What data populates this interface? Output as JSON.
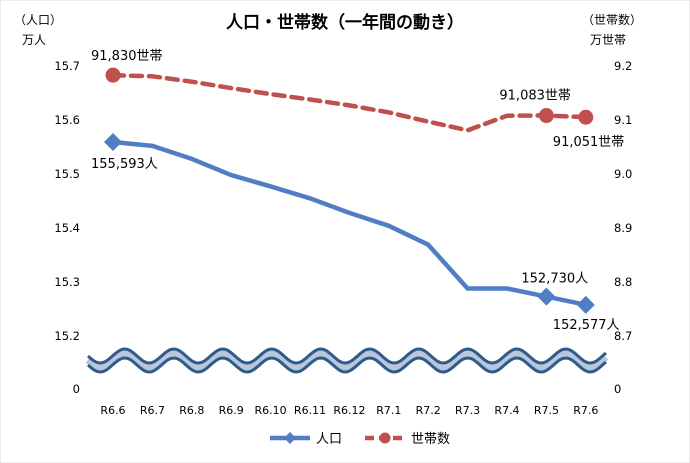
{
  "chart_data": {
    "type": "line",
    "title": "人口・世帯数（一年間の動き）",
    "categories": [
      "R6.6",
      "R6.7",
      "R6.8",
      "R6.9",
      "R6.10",
      "R6.11",
      "R6.12",
      "R7.1",
      "R7.2",
      "R7.3",
      "R7.4",
      "R7.5",
      "R7.6"
    ],
    "left_axis": {
      "label_line1": "（人口）",
      "label_line2": "万人",
      "ticks": [
        "15.7",
        "15.6",
        "15.5",
        "15.4",
        "15.3",
        "15.2"
      ],
      "tick_values": [
        15.7,
        15.6,
        15.5,
        15.4,
        15.3,
        15.2
      ],
      "zero_label": "0",
      "ylim": [
        15.2,
        15.7
      ]
    },
    "right_axis": {
      "label_line1": "（世帯数）",
      "label_line2": "万世帯",
      "ticks": [
        "9.2",
        "9.1",
        "9.0",
        "8.9",
        "8.8",
        "8.7"
      ],
      "tick_values": [
        9.2,
        9.1,
        9.0,
        8.9,
        8.8,
        8.7
      ],
      "zero_label": "0",
      "ylim": [
        8.7,
        9.2
      ]
    },
    "axis_break": true,
    "grid": false,
    "legend_position": "bottom",
    "series": [
      {
        "name": "人口",
        "axis": "left",
        "color": "#4F7EC2",
        "marker": "diamond",
        "values": [
          15.5593,
          15.552,
          15.528,
          15.498,
          15.477,
          15.455,
          15.428,
          15.404,
          15.369,
          15.288,
          15.288,
          15.273,
          15.2577
        ],
        "marked_indices": [
          0,
          11,
          12
        ]
      },
      {
        "name": "世帯数",
        "axis": "right",
        "color": "#C0504D",
        "marker": "circle",
        "values": [
          9.183,
          9.181,
          9.171,
          9.159,
          9.148,
          9.138,
          9.127,
          9.114,
          9.097,
          9.081,
          9.108,
          9.1083,
          9.1051
        ],
        "marked_indices": [
          0,
          11,
          12
        ]
      }
    ],
    "annotations": [
      {
        "series": "人口",
        "index": 0,
        "text": "155,593人"
      },
      {
        "series": "人口",
        "index": 11,
        "text": "152,730人"
      },
      {
        "series": "人口",
        "index": 12,
        "text": "152,577人"
      },
      {
        "series": "世帯数",
        "index": 0,
        "text": "91,830世帯"
      },
      {
        "series": "世帯数",
        "index": 11,
        "text": "91,083世帯"
      },
      {
        "series": "世帯数",
        "index": 12,
        "text": "91,051世帯"
      }
    ]
  }
}
